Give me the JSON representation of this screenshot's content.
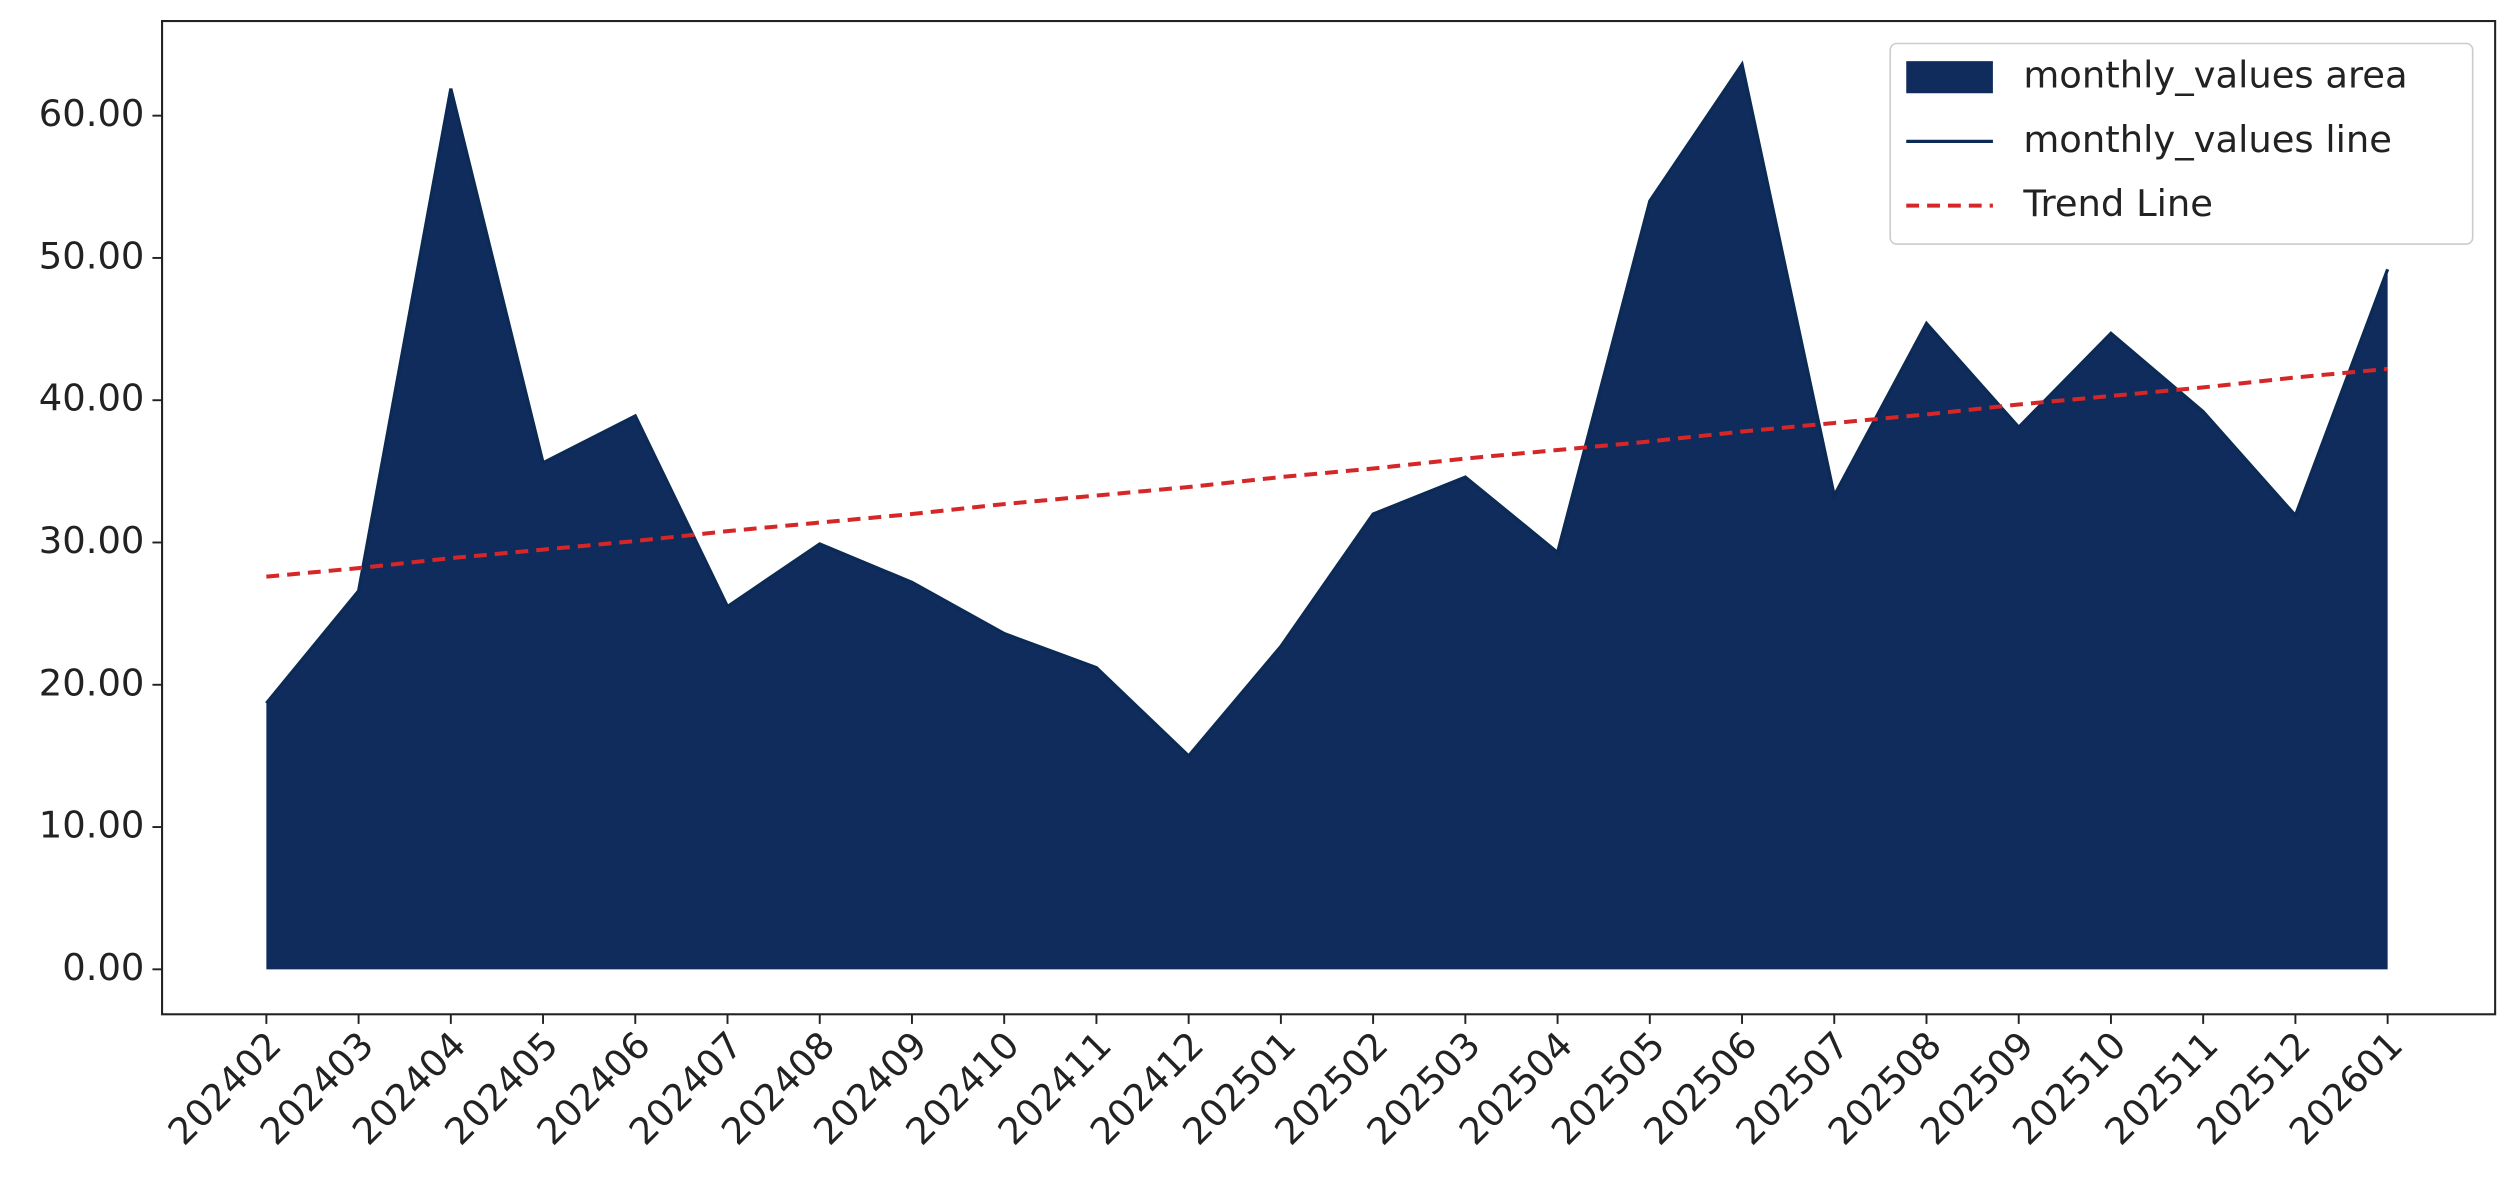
{
  "chart_data": {
    "type": "area",
    "categories": [
      "202402",
      "202403",
      "202404",
      "202405",
      "202406",
      "202407",
      "202408",
      "202409",
      "202410",
      "202411",
      "202412",
      "202501",
      "202502",
      "202503",
      "202504",
      "202505",
      "202506",
      "202507",
      "202508",
      "202509",
      "202510",
      "202511",
      "202512",
      "202601"
    ],
    "series": [
      {
        "name": "monthly_values area",
        "type": "area",
        "color": "#102c5c",
        "values": [
          18.7,
          26.6,
          61.9,
          35.6,
          38.9,
          25.5,
          29.9,
          27.2,
          23.6,
          21.2,
          15.0,
          22.7,
          32.0,
          34.6,
          29.3,
          54.0,
          63.6,
          33.3,
          45.4,
          38.1,
          44.7,
          39.2,
          31.9,
          49.2
        ]
      },
      {
        "name": "monthly_values line",
        "type": "line",
        "color": "#0b2a55",
        "values": [
          18.7,
          26.6,
          61.9,
          35.6,
          38.9,
          25.5,
          29.9,
          27.2,
          23.6,
          21.2,
          15.0,
          22.7,
          32.0,
          34.6,
          29.3,
          54.0,
          63.6,
          33.3,
          45.4,
          38.1,
          44.7,
          39.2,
          31.9,
          49.2
        ]
      },
      {
        "name": "Trend Line",
        "type": "line",
        "dashed": true,
        "color": "#d62728",
        "values": [
          27.6,
          28.2,
          28.9,
          29.5,
          30.1,
          30.8,
          31.4,
          32.0,
          32.7,
          33.3,
          33.9,
          34.6,
          35.2,
          35.9,
          36.5,
          37.1,
          37.8,
          38.4,
          39.0,
          39.7,
          40.3,
          40.9,
          41.6,
          42.2
        ]
      }
    ],
    "ylim": [
      -3.16,
      66.65
    ],
    "yticks": [
      {
        "value": 0,
        "label": "0.00"
      },
      {
        "value": 10,
        "label": "10.00"
      },
      {
        "value": 20,
        "label": "20.00"
      },
      {
        "value": 30,
        "label": "30.00"
      },
      {
        "value": 40,
        "label": "40.00"
      },
      {
        "value": 50,
        "label": "50.00"
      },
      {
        "value": 60,
        "label": "60.00"
      }
    ],
    "grid": false,
    "legend": "upper right"
  }
}
